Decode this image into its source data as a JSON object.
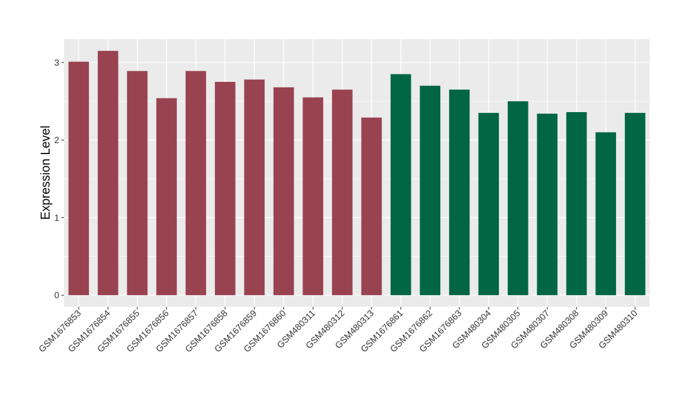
{
  "chart_data": {
    "type": "bar",
    "ylabel": "Expression Level",
    "xlabel": "",
    "ylim": [
      -0.15,
      3.3
    ],
    "yticks": [
      0,
      1,
      2,
      3
    ],
    "grid": true,
    "categories": [
      "GSM1676853",
      "GSM1676854",
      "GSM1676855",
      "GSM1676856",
      "GSM1676857",
      "GSM1676858",
      "GSM1676859",
      "GSM1676860",
      "GSM480311",
      "GSM480312",
      "GSM480313",
      "GSM1676861",
      "GSM1676862",
      "GSM1676863",
      "GSM480304",
      "GSM480305",
      "GSM480307",
      "GSM480308",
      "GSM480309",
      "GSM480310"
    ],
    "values": [
      3.01,
      3.15,
      2.89,
      2.54,
      2.89,
      2.75,
      2.78,
      2.68,
      2.55,
      2.65,
      2.29,
      2.85,
      2.7,
      2.65,
      2.35,
      2.5,
      2.34,
      2.36,
      2.1,
      2.35
    ],
    "group_colors": [
      "#9a4350",
      "#9a4350",
      "#9a4350",
      "#9a4350",
      "#9a4350",
      "#9a4350",
      "#9a4350",
      "#9a4350",
      "#9a4350",
      "#9a4350",
      "#9a4350",
      "#006644",
      "#006644",
      "#006644",
      "#006644",
      "#006644",
      "#006644",
      "#006644",
      "#006644",
      "#006644"
    ],
    "panel_color": "#ebebeb",
    "grid_color": "#ffffff"
  }
}
